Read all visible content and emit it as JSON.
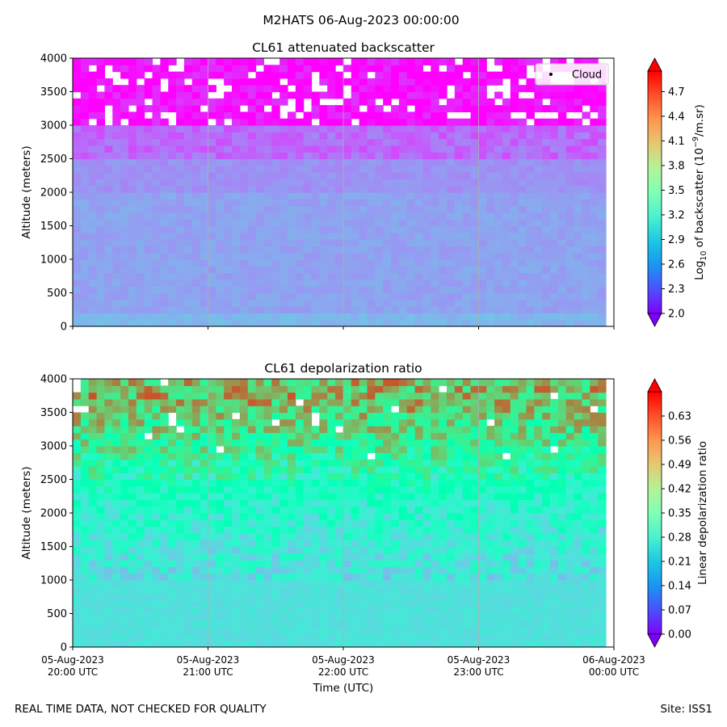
{
  "suptitle": "M2HATS 06-Aug-2023 00:00:00",
  "footer": {
    "left": "REAL TIME DATA, NOT CHECKED FOR QUALITY",
    "right": "Site: ISS1"
  },
  "chart_data": [
    {
      "type": "heatmap",
      "title": "CL61 attenuated backscatter",
      "xlabel": "",
      "ylabel": "Altitude (meters)",
      "ylim": [
        0,
        4000
      ],
      "yticks": [
        0,
        500,
        1000,
        1500,
        2000,
        2500,
        3000,
        3500,
        4000
      ],
      "xticks_hours_since_start": [
        0,
        1,
        2,
        3,
        4
      ],
      "xtick_labels_shown": false,
      "legend": {
        "entries": [
          "Cloud"
        ],
        "placement": "top-right"
      },
      "colorbar": {
        "label_prefix": "Log",
        "label_sub": "10",
        "label_mid": " of backscatter (10",
        "label_sup": "−9",
        "label_suffix": "/m.sr)",
        "range": [
          2.0,
          4.95
        ],
        "ticks": [
          2.0,
          2.3,
          2.6,
          2.9,
          3.2,
          3.5,
          3.8,
          4.1,
          4.4,
          4.7
        ],
        "tick_labels": [
          "2.0",
          "2.3",
          "2.6",
          "2.9",
          "3.2",
          "3.5",
          "3.8",
          "4.1",
          "4.4",
          "4.7"
        ],
        "colormap": "rainbow",
        "extend": "both"
      },
      "field_description_values": {
        "surface_level": 2.75,
        "boundary_layer_below_2500m": 2.65,
        "free_troposphere_2500_3000m": 2.4,
        "noise_above_3000m": 2.05
      }
    },
    {
      "type": "heatmap",
      "title": "CL61 depolarization ratio",
      "xlabel": "Time (UTC)",
      "ylabel": "Altitude (meters)",
      "ylim": [
        0,
        4000
      ],
      "yticks": [
        0,
        500,
        1000,
        1500,
        2000,
        2500,
        3000,
        3500,
        4000
      ],
      "xticks_hours_since_start": [
        0,
        1,
        2,
        3,
        4
      ],
      "xtick_labels": [
        [
          "05-Aug-2023",
          "20:00 UTC"
        ],
        [
          "05-Aug-2023",
          "21:00 UTC"
        ],
        [
          "05-Aug-2023",
          "22:00 UTC"
        ],
        [
          "05-Aug-2023",
          "23:00 UTC"
        ],
        [
          "06-Aug-2023",
          "00:00 UTC"
        ]
      ],
      "colorbar": {
        "label": "Linear depolarization ratio",
        "range": [
          0.0,
          0.7
        ],
        "ticks": [
          0.0,
          0.07,
          0.14,
          0.21,
          0.28,
          0.35,
          0.42,
          0.49,
          0.56,
          0.63
        ],
        "tick_labels": [
          "0.00",
          "0.07",
          "0.14",
          "0.21",
          "0.28",
          "0.35",
          "0.42",
          "0.49",
          "0.56",
          "0.63"
        ],
        "colormap": "rainbow",
        "extend": "both"
      },
      "field_description_values": {
        "below_1000m": 0.24,
        "around_2000m": 0.3,
        "around_3000m": 0.45,
        "above_3500m": 0.52
      }
    }
  ]
}
